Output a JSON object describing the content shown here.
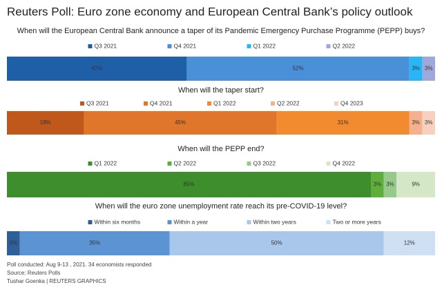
{
  "title": "Reuters Poll: Euro zone economy and European Central Bank’s policy outlook",
  "notes": [
    "Poll conducted: Aug 9-13 , 2021. 34 economists responded",
    "Source: Reuters Polls",
    "Tushar Goenka | REUTERS GRAPHICS"
  ],
  "chart_data": [
    {
      "type": "stacked-bar",
      "title": "When will the European Central Bank announce a taper of its Pandemic Emergency Purchase Programme (PEPP) buys?",
      "xlim": [
        0,
        100
      ],
      "series": [
        {
          "name": "Q3 2021",
          "color": "#1f5fa8",
          "values": [
            42
          ],
          "value_labels": [
            "42%"
          ]
        },
        {
          "name": "Q4 2021",
          "color": "#4a90d9",
          "values": [
            52
          ],
          "value_labels": [
            "52%"
          ]
        },
        {
          "name": "Q1 2022",
          "color": "#29b6f6",
          "values": [
            3
          ],
          "value_labels": [
            "3%"
          ]
        },
        {
          "name": "Q2 2022",
          "color": "#9fa8da",
          "values": [
            3
          ],
          "value_labels": [
            "3%"
          ]
        }
      ]
    },
    {
      "type": "stacked-bar",
      "title": "When will the taper start?",
      "xlim": [
        0,
        100
      ],
      "series": [
        {
          "name": "Q3 2021",
          "color": "#c0571b",
          "values": [
            18
          ],
          "value_labels": [
            "18%"
          ]
        },
        {
          "name": "Q4 2021",
          "color": "#e0762a",
          "values": [
            45
          ],
          "value_labels": [
            "45%"
          ]
        },
        {
          "name": "Q1 2022",
          "color": "#f28a30",
          "values": [
            31
          ],
          "value_labels": [
            "31%"
          ]
        },
        {
          "name": "Q2 2022",
          "color": "#f5b08c",
          "values": [
            3
          ],
          "value_labels": [
            "3%"
          ]
        },
        {
          "name": "Q4 2023",
          "color": "#f7d0c0",
          "values": [
            3
          ],
          "value_labels": [
            "3%"
          ]
        }
      ]
    },
    {
      "type": "stacked-bar",
      "title": "When will the PEPP end?",
      "xlim": [
        0,
        100
      ],
      "series": [
        {
          "name": "Q1 2022",
          "color": "#3e8e2e",
          "values": [
            85
          ],
          "value_labels": [
            "85%"
          ]
        },
        {
          "name": "Q2 2022",
          "color": "#5fae3b",
          "values": [
            3
          ],
          "value_labels": [
            "3%"
          ]
        },
        {
          "name": "Q3 2022",
          "color": "#96c98a",
          "values": [
            3
          ],
          "value_labels": [
            "3%"
          ]
        },
        {
          "name": "Q4 2022",
          "color": "#d4e8c8",
          "values": [
            9
          ],
          "value_labels": [
            "9%"
          ]
        }
      ]
    },
    {
      "type": "stacked-bar",
      "title": "When will the euro zone unemployment rate reach its pre-COVID-19 level?",
      "xlim": [
        0,
        100
      ],
      "series": [
        {
          "name": "Within six months",
          "color": "#2f5f99",
          "values": [
            3
          ],
          "value_labels": [
            "3%"
          ]
        },
        {
          "name": "Within a year",
          "color": "#5b93d3",
          "values": [
            35
          ],
          "value_labels": [
            "35%"
          ]
        },
        {
          "name": "Within two years",
          "color": "#a9c7ea",
          "values": [
            50
          ],
          "value_labels": [
            "50%"
          ]
        },
        {
          "name": "Two or more years",
          "color": "#cfe0f5",
          "values": [
            12
          ],
          "value_labels": [
            "12%"
          ]
        }
      ]
    }
  ]
}
